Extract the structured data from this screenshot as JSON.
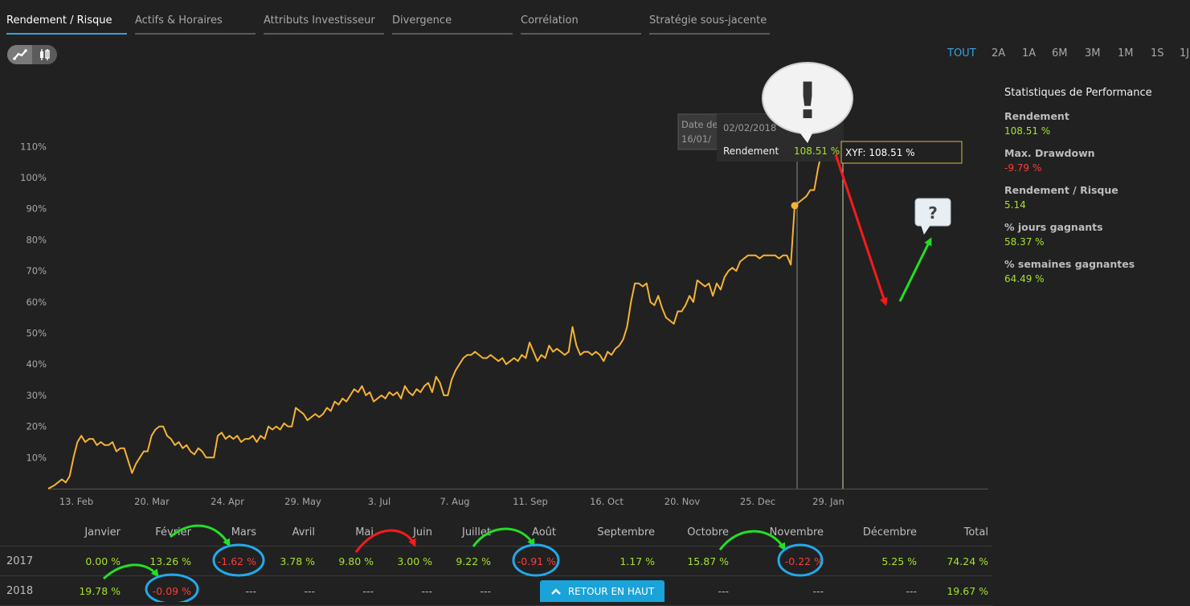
{
  "tabs": [
    {
      "label": "Rendement / Risque",
      "active": true
    },
    {
      "label": "Actifs & Horaires",
      "active": false
    },
    {
      "label": "Attributs Investisseur",
      "active": false
    },
    {
      "label": "Divergence",
      "active": false
    },
    {
      "label": "Corrélation",
      "active": false
    },
    {
      "label": "Stratégie sous-jacente",
      "active": false
    }
  ],
  "view_toggle": {
    "line_icon": "line-chart-icon",
    "candle_icon": "candlestick-icon",
    "active": "line"
  },
  "ranges": [
    {
      "label": "TOUT",
      "active": true
    },
    {
      "label": "2A",
      "active": false
    },
    {
      "label": "1A",
      "active": false
    },
    {
      "label": "6M",
      "active": false
    },
    {
      "label": "3M",
      "active": false
    },
    {
      "label": "1M",
      "active": false
    },
    {
      "label": "1S",
      "active": false
    },
    {
      "label": "1J",
      "active": false
    }
  ],
  "stats": {
    "title": "Statistiques de Performance",
    "items": [
      {
        "label": "Rendement",
        "value": "108.51 %",
        "tone": "pos"
      },
      {
        "label": "Max. Drawdown",
        "value": "-9.79 %",
        "tone": "neg"
      },
      {
        "label": "Rendement / Risque",
        "value": "5.14",
        "tone": "pos"
      },
      {
        "label": "% jours gagnants",
        "value": "58.37 %",
        "tone": "pos"
      },
      {
        "label": "% semaines gagnantes",
        "value": "64.49 %",
        "tone": "pos"
      }
    ]
  },
  "chart_data": {
    "type": "line",
    "y_ticks": [
      "10%",
      "20%",
      "30%",
      "40%",
      "50%",
      "60%",
      "70%",
      "80%",
      "90%",
      "100%",
      "110%"
    ],
    "x_ticks": [
      "13. Feb",
      "20. Mar",
      "24. Apr",
      "29. May",
      "3. Jul",
      "7. Aug",
      "11. Sep",
      "16. Oct",
      "20. Nov",
      "25. Dec",
      "29. Jan"
    ],
    "ylim": [
      0,
      110
    ],
    "series": [
      {
        "name": "XYF",
        "color": "#f5b335",
        "points": [
          [
            0,
            0
          ],
          [
            3,
            1
          ],
          [
            5,
            2
          ],
          [
            7,
            3
          ],
          [
            9,
            2
          ],
          [
            11,
            4
          ],
          [
            13,
            10
          ],
          [
            15,
            15
          ],
          [
            17,
            17
          ],
          [
            19,
            15
          ],
          [
            21,
            16
          ],
          [
            23,
            16
          ],
          [
            25,
            14
          ],
          [
            27,
            15
          ],
          [
            29,
            14
          ],
          [
            31,
            14
          ],
          [
            33,
            15
          ],
          [
            35,
            12
          ],
          [
            37,
            13
          ],
          [
            39,
            13
          ],
          [
            41,
            9
          ],
          [
            43,
            5
          ],
          [
            45,
            8
          ],
          [
            47,
            10
          ],
          [
            49,
            12
          ],
          [
            51,
            12
          ],
          [
            53,
            17
          ],
          [
            55,
            19
          ],
          [
            57,
            20
          ],
          [
            59,
            20
          ],
          [
            61,
            17
          ],
          [
            63,
            16
          ],
          [
            65,
            14
          ],
          [
            67,
            15
          ],
          [
            69,
            13
          ],
          [
            71,
            14
          ],
          [
            73,
            12
          ],
          [
            75,
            11
          ],
          [
            77,
            13
          ],
          [
            79,
            12
          ],
          [
            81,
            10
          ],
          [
            83,
            10
          ],
          [
            85,
            10
          ],
          [
            87,
            17
          ],
          [
            89,
            18
          ],
          [
            91,
            16
          ],
          [
            93,
            17
          ],
          [
            95,
            16
          ],
          [
            97,
            17
          ],
          [
            99,
            15
          ],
          [
            101,
            16
          ],
          [
            103,
            16
          ],
          [
            105,
            17
          ],
          [
            107,
            15
          ],
          [
            109,
            17
          ],
          [
            111,
            16
          ],
          [
            113,
            20
          ],
          [
            115,
            19
          ],
          [
            117,
            20
          ],
          [
            119,
            19
          ],
          [
            121,
            21
          ],
          [
            123,
            20
          ],
          [
            125,
            20
          ],
          [
            127,
            26
          ],
          [
            129,
            25
          ],
          [
            131,
            24
          ],
          [
            133,
            22
          ],
          [
            135,
            23
          ],
          [
            137,
            24
          ],
          [
            139,
            23
          ],
          [
            141,
            24
          ],
          [
            143,
            26
          ],
          [
            145,
            25
          ],
          [
            147,
            28
          ],
          [
            149,
            27
          ],
          [
            151,
            29
          ],
          [
            153,
            28
          ],
          [
            155,
            30
          ],
          [
            157,
            32
          ],
          [
            159,
            31
          ],
          [
            161,
            33
          ],
          [
            163,
            30
          ],
          [
            165,
            31
          ],
          [
            167,
            28
          ],
          [
            169,
            29
          ],
          [
            171,
            30
          ],
          [
            173,
            29
          ],
          [
            175,
            31
          ],
          [
            177,
            30
          ],
          [
            179,
            31
          ],
          [
            181,
            29
          ],
          [
            183,
            33
          ],
          [
            185,
            31
          ],
          [
            187,
            30
          ],
          [
            189,
            32
          ],
          [
            191,
            31
          ],
          [
            193,
            33
          ],
          [
            195,
            34
          ],
          [
            197,
            31
          ],
          [
            199,
            36
          ],
          [
            201,
            34
          ],
          [
            203,
            30
          ],
          [
            205,
            30
          ],
          [
            207,
            35
          ],
          [
            209,
            38
          ],
          [
            211,
            40
          ],
          [
            213,
            42
          ],
          [
            215,
            43
          ],
          [
            217,
            43
          ],
          [
            219,
            44
          ],
          [
            221,
            43
          ],
          [
            223,
            42
          ],
          [
            225,
            42
          ],
          [
            227,
            43
          ],
          [
            229,
            42
          ],
          [
            231,
            41
          ],
          [
            233,
            42
          ],
          [
            235,
            40
          ],
          [
            237,
            41
          ],
          [
            239,
            42
          ],
          [
            241,
            41
          ],
          [
            243,
            43
          ],
          [
            245,
            42
          ],
          [
            247,
            47
          ],
          [
            249,
            44
          ],
          [
            251,
            41
          ],
          [
            253,
            43
          ],
          [
            255,
            42
          ],
          [
            257,
            46
          ],
          [
            259,
            44
          ],
          [
            261,
            45
          ],
          [
            263,
            44
          ],
          [
            265,
            43
          ],
          [
            267,
            44
          ],
          [
            269,
            52
          ],
          [
            271,
            46
          ],
          [
            273,
            43
          ],
          [
            275,
            44
          ],
          [
            277,
            44
          ],
          [
            279,
            43
          ],
          [
            281,
            44
          ],
          [
            283,
            43
          ],
          [
            285,
            41
          ],
          [
            287,
            44
          ],
          [
            289,
            43
          ],
          [
            291,
            45
          ],
          [
            293,
            46
          ],
          [
            295,
            48
          ],
          [
            297,
            52
          ],
          [
            299,
            60
          ],
          [
            301,
            66
          ],
          [
            303,
            66
          ],
          [
            305,
            65
          ],
          [
            307,
            66
          ],
          [
            309,
            60
          ],
          [
            311,
            59
          ],
          [
            313,
            62
          ],
          [
            315,
            58
          ],
          [
            317,
            55
          ],
          [
            319,
            54
          ],
          [
            321,
            53
          ],
          [
            323,
            57
          ],
          [
            325,
            57
          ],
          [
            327,
            59
          ],
          [
            329,
            62
          ],
          [
            331,
            60
          ],
          [
            333,
            67
          ],
          [
            335,
            66
          ],
          [
            337,
            65
          ],
          [
            339,
            66
          ],
          [
            341,
            62
          ],
          [
            343,
            66
          ],
          [
            345,
            64
          ],
          [
            347,
            68
          ],
          [
            349,
            70
          ],
          [
            351,
            71
          ],
          [
            353,
            70
          ],
          [
            355,
            73
          ],
          [
            357,
            74
          ],
          [
            359,
            75
          ],
          [
            361,
            75
          ],
          [
            363,
            75
          ],
          [
            365,
            74
          ],
          [
            367,
            75
          ],
          [
            369,
            75
          ],
          [
            371,
            75
          ],
          [
            373,
            75
          ],
          [
            375,
            74
          ],
          [
            377,
            75
          ],
          [
            379,
            75
          ],
          [
            381,
            72
          ],
          [
            383,
            91
          ],
          [
            385,
            92
          ],
          [
            387,
            93
          ],
          [
            389,
            94
          ],
          [
            391,
            96
          ],
          [
            393,
            96
          ],
          [
            395,
            103
          ],
          [
            397,
            108.5
          ]
        ]
      }
    ],
    "hover": {
      "date_label": "Date de",
      "date_value": "02/02/2018",
      "date_value2": "16/01/",
      "series_label": "Rendement",
      "series_value": "108.51 %",
      "badge": "XYF: 108.51 %"
    }
  },
  "monthly": {
    "headers": [
      "Janvier",
      "Février",
      "Mars",
      "Avril",
      "Mai",
      "Juin",
      "Juillet",
      "Août",
      "Septembre",
      "Octobre",
      "Novembre",
      "Décembre",
      "Total"
    ],
    "rows": [
      {
        "year": "2017",
        "values": [
          {
            "v": "0.00 %",
            "t": "pos"
          },
          {
            "v": "13.26 %",
            "t": "pos"
          },
          {
            "v": "-1.62 %",
            "t": "neg"
          },
          {
            "v": "3.78 %",
            "t": "pos"
          },
          {
            "v": "9.80 %",
            "t": "pos"
          },
          {
            "v": "3.00 %",
            "t": "pos"
          },
          {
            "v": "9.22 %",
            "t": "pos"
          },
          {
            "v": "-0.91 %",
            "t": "neg"
          },
          {
            "v": "1.17 %",
            "t": "pos"
          },
          {
            "v": "15.87 %",
            "t": "pos"
          },
          {
            "v": "-0.22 %",
            "t": "neg"
          },
          {
            "v": "5.25 %",
            "t": "pos"
          },
          {
            "v": "74.24 %",
            "t": "pos"
          }
        ]
      },
      {
        "year": "2018",
        "values": [
          {
            "v": "19.78 %",
            "t": "pos"
          },
          {
            "v": "-0.09 %",
            "t": "neg"
          },
          {
            "v": "---",
            "t": "dash"
          },
          {
            "v": "---",
            "t": "dash"
          },
          {
            "v": "---",
            "t": "dash"
          },
          {
            "v": "---",
            "t": "dash"
          },
          {
            "v": "---",
            "t": "dash"
          },
          {
            "v": "---",
            "t": "dash"
          },
          {
            "v": "---",
            "t": "dash"
          },
          {
            "v": "---",
            "t": "dash"
          },
          {
            "v": "---",
            "t": "dash"
          },
          {
            "v": "---",
            "t": "dash"
          },
          {
            "v": "19.67 %",
            "t": "pos"
          }
        ]
      }
    ]
  },
  "back_to_top": {
    "label": "RETOUR EN HAUT",
    "icon": "chevron-up-icon"
  },
  "annotations": {
    "exclaim": "!",
    "question": "?"
  }
}
